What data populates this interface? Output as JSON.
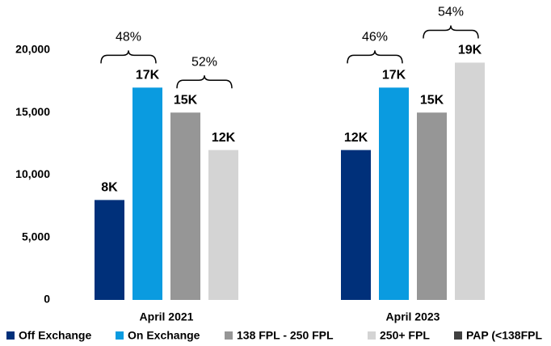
{
  "chart_data": {
    "type": "bar",
    "categories": [
      "April 2021",
      "April 2023"
    ],
    "series": [
      {
        "name": "Off Exchange",
        "color": "#00307a",
        "values": [
          8000,
          12000
        ],
        "value_labels": [
          "8K",
          "12K"
        ]
      },
      {
        "name": "On Exchange",
        "color": "#0a9be0",
        "values": [
          17000,
          17000
        ],
        "value_labels": [
          "17K",
          "17K"
        ]
      },
      {
        "name": "138 FPL - 250 FPL",
        "color": "#969696",
        "values": [
          15000,
          15000
        ],
        "value_labels": [
          "15K",
          "15K"
        ]
      },
      {
        "name": "250+ FPL",
        "color": "#d4d4d4",
        "values": [
          12000,
          19000
        ],
        "value_labels": [
          "12K",
          "19K"
        ]
      },
      {
        "name": "PAP (<138FPL",
        "color": "#404040",
        "values": [
          null,
          null
        ]
      }
    ],
    "annotations": [
      "48%",
      "52%",
      "46%",
      "54%"
    ],
    "ylim": [
      0,
      20000
    ],
    "yticks": [
      0,
      {
        "value": 5000,
        "label": "5,000"
      },
      {
        "value": 10000,
        "label": "10,000"
      },
      {
        "value": 15000,
        "label": "15,000"
      },
      {
        "value": 20000,
        "label": "20,000"
      }
    ],
    "grid": false
  }
}
